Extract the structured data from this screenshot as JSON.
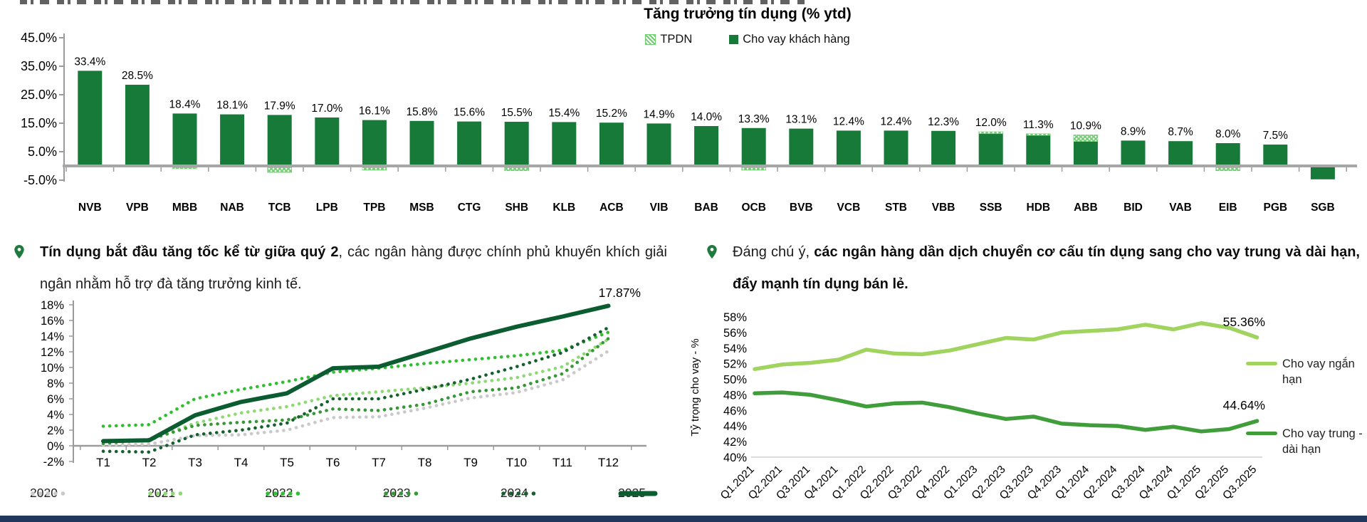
{
  "page": {
    "footer_color": "#22375c"
  },
  "left_section": {
    "bullet_bold": "Tín dụng bắt đầu tăng tốc kể từ giữa quý 2",
    "bullet_rest": ", các ngân hàng được chính phủ khuyến khích giải ngân nhằm hỗ trợ đà tăng trưởng kinh tế."
  },
  "right_section": {
    "bullet_prefix": "Đáng chú ý, ",
    "bullet_bold": "các ngân hàng dần dịch chuyển cơ cấu tín dụng sang cho vay trung và dài hạn, đẩy mạnh tín dụng bán lẻ."
  },
  "chart_data": [
    {
      "type": "bar",
      "title": "Tăng trưởng tín dụng (% ytd)",
      "legend": [
        "TPDN",
        "Cho vay khách hàng"
      ],
      "colors": {
        "bar": "#177a38",
        "tpdn": "#6fcd6f"
      },
      "ylim": [
        -5,
        45
      ],
      "y_ticks": [
        45,
        35,
        25,
        15,
        5,
        -5
      ],
      "y_tick_labels": [
        "45.0%",
        "35.0%",
        "25.0%",
        "15.0%",
        "5.0%",
        "-5.0%"
      ],
      "categories": [
        "NVB",
        "VPB",
        "MBB",
        "NAB",
        "TCB",
        "LPB",
        "TPB",
        "MSB",
        "CTG",
        "SHB",
        "KLB",
        "ACB",
        "VIB",
        "BAB",
        "OCB",
        "BVB",
        "VCB",
        "STB",
        "VBB",
        "SSB",
        "HDB",
        "ABB",
        "BID",
        "VAB",
        "EIB",
        "PGB",
        "SGB"
      ],
      "series": [
        {
          "name": "Cho vay khách hàng",
          "values": [
            33.4,
            28.5,
            18.4,
            18.1,
            17.9,
            17.0,
            16.1,
            15.8,
            15.6,
            15.5,
            15.4,
            15.2,
            14.9,
            14.0,
            13.3,
            13.1,
            12.4,
            12.4,
            12.3,
            11.3,
            10.7,
            8.6,
            8.9,
            8.7,
            8.0,
            7.5,
            -4.2
          ]
        },
        {
          "name": "TPDN",
          "values": [
            0,
            0,
            -0.5,
            0,
            -1.8,
            0,
            -1.0,
            0,
            0,
            -1.2,
            0,
            0,
            0,
            0,
            -1.0,
            0,
            0,
            0,
            0,
            0.7,
            0.6,
            2.3,
            0,
            0,
            -1.2,
            0,
            0
          ]
        }
      ],
      "data_labels": [
        "33.4%",
        "28.5%",
        "18.4%",
        "18.1%",
        "17.9%",
        "17.0%",
        "16.1%",
        "15.8%",
        "15.6%",
        "15.5%",
        "15.4%",
        "15.2%",
        "14.9%",
        "14.0%",
        "13.3%",
        "13.1%",
        "12.4%",
        "12.4%",
        "12.3%",
        "12.0%",
        "11.3%",
        "10.9%",
        "8.9%",
        "8.7%",
        "8.0%",
        "7.5%",
        ""
      ]
    },
    {
      "type": "line",
      "x": [
        "T1",
        "T2",
        "T3",
        "T4",
        "T5",
        "T6",
        "T7",
        "T8",
        "T9",
        "T10",
        "T11",
        "T12"
      ],
      "ylim": [
        -2,
        18
      ],
      "y_ticks": [
        18,
        16,
        14,
        12,
        10,
        8,
        6,
        4,
        2,
        0,
        -2
      ],
      "y_tick_labels": [
        "18%",
        "16%",
        "14%",
        "12%",
        "10%",
        "8%",
        "6%",
        "4%",
        "2%",
        "0%",
        "-2%"
      ],
      "annotation": "17.87%",
      "series": [
        {
          "name": "2020",
          "color": "#c9c9c9",
          "style": "dotted",
          "values": [
            0.1,
            0.2,
            1.3,
            1.4,
            2.0,
            3.6,
            3.7,
            4.8,
            6.1,
            6.8,
            8.4,
            12.1
          ]
        },
        {
          "name": "2021",
          "color": "#8ed973",
          "style": "dotted",
          "values": [
            0.6,
            0.7,
            2.9,
            4.2,
            5.0,
            6.4,
            6.9,
            7.4,
            8.0,
            8.7,
            10.1,
            13.6
          ]
        },
        {
          "name": "2022",
          "color": "#2fbf2f",
          "style": "dotted",
          "values": [
            2.5,
            2.7,
            6.0,
            7.2,
            8.2,
            9.4,
            9.9,
            10.5,
            11.0,
            11.5,
            12.2,
            14.5
          ]
        },
        {
          "name": "2023",
          "color": "#379737",
          "style": "dotted",
          "values": [
            0.3,
            0.8,
            2.6,
            3.0,
            3.3,
            4.7,
            4.5,
            5.3,
            6.9,
            7.4,
            9.2,
            13.7
          ]
        },
        {
          "name": "2024",
          "color": "#166030",
          "style": "dotted",
          "values": [
            -0.7,
            -0.8,
            1.4,
            2.0,
            2.9,
            6.0,
            6.0,
            7.2,
            8.5,
            10.1,
            11.9,
            15.1
          ]
        },
        {
          "name": "2025",
          "color": "#0b5c31",
          "style": "solid",
          "values": [
            0.6,
            0.7,
            3.9,
            5.6,
            6.7,
            9.9,
            10.1,
            11.9,
            13.7,
            15.2,
            16.5,
            17.87
          ]
        }
      ]
    },
    {
      "type": "line",
      "ylabel": "Tỷ trọng cho vay - %",
      "ylim": [
        40,
        58
      ],
      "y_ticks": [
        58,
        56,
        54,
        52,
        50,
        48,
        46,
        44,
        42,
        40
      ],
      "y_tick_labels": [
        "58%",
        "56%",
        "54%",
        "52%",
        "50%",
        "48%",
        "46%",
        "44%",
        "42%",
        "40%"
      ],
      "x": [
        "Q1.2021",
        "Q2.2021",
        "Q3.2021",
        "Q4.2021",
        "Q1.2022",
        "Q2.2022",
        "Q3.2022",
        "Q4.2022",
        "Q1.2023",
        "Q2.2023",
        "Q3.2023",
        "Q4.2023",
        "Q1.2024",
        "Q2.2024",
        "Q3.2024",
        "Q4.2024",
        "Q1.2025",
        "Q2.2025",
        "Q3.2025"
      ],
      "series": [
        {
          "name": "Cho vay ngắn hạn",
          "color": "#a0d45f",
          "style": "solid",
          "end_label": "55.36%",
          "values": [
            51.3,
            51.9,
            52.1,
            52.5,
            53.8,
            53.3,
            53.2,
            53.7,
            54.5,
            55.3,
            55.1,
            56.0,
            56.2,
            56.4,
            57.0,
            56.4,
            57.2,
            56.6,
            55.36
          ]
        },
        {
          "name": "Cho vay trung - dài hạn",
          "color": "#3f9e3a",
          "style": "solid",
          "end_label": "44.64%",
          "values": [
            48.2,
            48.3,
            48.0,
            47.3,
            46.5,
            46.9,
            47.0,
            46.4,
            45.6,
            44.9,
            45.2,
            44.3,
            44.1,
            44.0,
            43.5,
            43.9,
            43.3,
            43.6,
            44.64
          ]
        }
      ]
    }
  ]
}
